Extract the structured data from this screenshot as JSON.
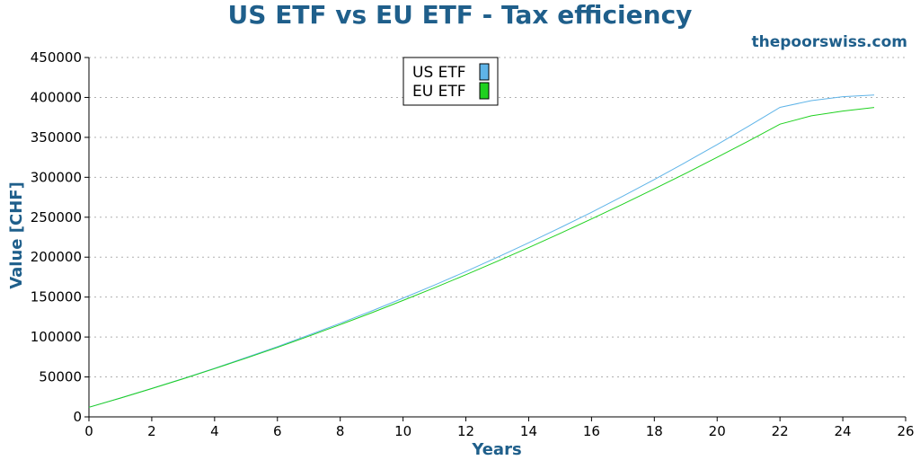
{
  "header": {
    "site": "thepoorswiss.com"
  },
  "chart_data": {
    "type": "line",
    "title": "US ETF vs EU ETF - Tax efficiency",
    "xlabel": "Years",
    "ylabel": "Value [CHF]",
    "xlim": [
      0,
      26
    ],
    "ylim": [
      0,
      450000
    ],
    "xticks": [
      0,
      2,
      4,
      6,
      8,
      10,
      12,
      14,
      16,
      18,
      20,
      22,
      24,
      26
    ],
    "yticks": [
      0,
      50000,
      100000,
      150000,
      200000,
      250000,
      300000,
      350000,
      400000,
      450000
    ],
    "grid": "horizontal-dotted",
    "legend_position": "top-center",
    "x": [
      0,
      1,
      2,
      3,
      4,
      5,
      6,
      7,
      8,
      9,
      10,
      11,
      12,
      13,
      14,
      15,
      16,
      17,
      18,
      19,
      20,
      21,
      22,
      23,
      24,
      25
    ],
    "series": [
      {
        "name": "US ETF",
        "color": "#5fb4e8",
        "values": [
          12000,
          23600,
          35600,
          48000,
          60800,
          74200,
          88000,
          102400,
          117200,
          132600,
          148600,
          165000,
          182000,
          199800,
          218000,
          236800,
          256200,
          276400,
          297200,
          318800,
          341000,
          364000,
          387600,
          396000,
          401000,
          403000
        ]
      },
      {
        "name": "EU ETF",
        "color": "#1fd11f",
        "values": [
          12000,
          23500,
          35400,
          47700,
          60400,
          73500,
          87000,
          101000,
          115500,
          130400,
          145800,
          161700,
          178000,
          194800,
          212000,
          229700,
          247800,
          266400,
          285500,
          305000,
          325000,
          345500,
          366500,
          377000,
          383000,
          387500
        ]
      }
    ]
  }
}
